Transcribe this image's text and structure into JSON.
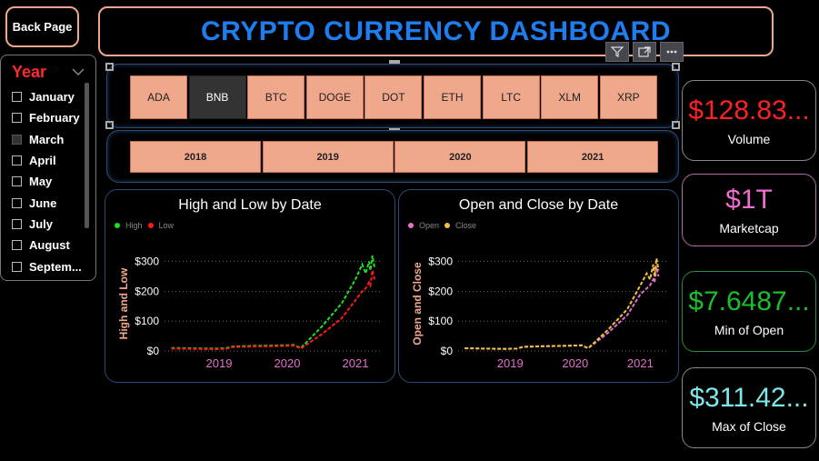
{
  "nav": {
    "back_label": "Back Page"
  },
  "header": {
    "title": "CRYPTO CURRENCY DASHBOARD"
  },
  "toolbar": {
    "icons": [
      "filter-icon",
      "focus-mode-icon",
      "more-options-icon"
    ]
  },
  "year_slicer": {
    "label": "Year",
    "months": [
      {
        "label": "January",
        "checked": false
      },
      {
        "label": "February",
        "checked": false
      },
      {
        "label": "March",
        "checked": true
      },
      {
        "label": "April",
        "checked": false
      },
      {
        "label": "May",
        "checked": false
      },
      {
        "label": "June",
        "checked": false
      },
      {
        "label": "July",
        "checked": false
      },
      {
        "label": "August",
        "checked": false
      },
      {
        "label": "Septem...",
        "checked": false
      }
    ]
  },
  "coin_slicer": {
    "coins": [
      "ADA",
      "BNB",
      "BTC",
      "DOGE",
      "DOT",
      "ETH",
      "LTC",
      "XLM",
      "XRP"
    ],
    "selected": "BNB"
  },
  "year_buttons": [
    "2018",
    "2019",
    "2020",
    "2021"
  ],
  "kpis": [
    {
      "value": "$128.83...",
      "label": "Volume",
      "color": "#ff2020"
    },
    {
      "value": "$1T",
      "label": "Marketcap",
      "color": "#ee6fd0"
    },
    {
      "value": "$7.6487...",
      "label": "Min of Open",
      "color": "#19c02c"
    },
    {
      "value": "$311.42...",
      "label": "Max of Close",
      "color": "#7fe6ea"
    }
  ],
  "chart_data": [
    {
      "type": "line",
      "title": "High and Low by Date",
      "ylabel": "High and Low",
      "x_ticks": [
        "2019",
        "2020",
        "2021"
      ],
      "y_ticks": [
        "$0",
        "$100",
        "$200",
        "$300"
      ],
      "ylim": [
        0,
        320
      ],
      "xlim": [
        2018.2,
        2021.4
      ],
      "grid": "horizontal dotted",
      "legend": "top-left",
      "series": [
        {
          "name": "High",
          "color": "#22dd22",
          "x": [
            2018.3,
            2018.6,
            2018.9,
            2019.1,
            2019.2,
            2019.5,
            2019.8,
            2020.1,
            2020.2,
            2020.5,
            2020.8,
            2021.0,
            2021.1,
            2021.15,
            2021.2,
            2021.22,
            2021.25,
            2021.28
          ],
          "y": [
            10,
            9,
            8,
            9,
            15,
            17,
            18,
            20,
            10,
            80,
            160,
            240,
            290,
            260,
            300,
            270,
            320,
            280
          ]
        },
        {
          "name": "Low",
          "color": "#ff1a1a",
          "x": [
            2018.3,
            2018.6,
            2018.9,
            2019.1,
            2019.2,
            2019.5,
            2019.8,
            2020.1,
            2020.2,
            2020.5,
            2020.8,
            2021.0,
            2021.1,
            2021.15,
            2021.2,
            2021.22,
            2021.25,
            2021.28
          ],
          "y": [
            8,
            7,
            6,
            7,
            13,
            15,
            16,
            18,
            8,
            55,
            110,
            170,
            200,
            210,
            230,
            220,
            270,
            240
          ]
        }
      ]
    },
    {
      "type": "line",
      "title": "Open and Close by Date",
      "ylabel": "Open and Close",
      "x_ticks": [
        "2019",
        "2020",
        "2021"
      ],
      "y_ticks": [
        "$0",
        "$100",
        "$200",
        "$300"
      ],
      "ylim": [
        0,
        320
      ],
      "xlim": [
        2018.2,
        2021.4
      ],
      "grid": "horizontal dotted",
      "legend": "top-left",
      "series": [
        {
          "name": "Open",
          "color": "#e46fcc",
          "x": [
            2018.3,
            2018.6,
            2018.9,
            2019.1,
            2019.2,
            2019.5,
            2019.8,
            2020.1,
            2020.2,
            2020.5,
            2020.8,
            2021.0,
            2021.1,
            2021.15,
            2021.2,
            2021.22,
            2021.25,
            2021.28
          ],
          "y": [
            9,
            8,
            7,
            8,
            14,
            16,
            17,
            19,
            9,
            60,
            120,
            190,
            210,
            220,
            240,
            230,
            280,
            250
          ]
        },
        {
          "name": "Close",
          "color": "#f0c040",
          "x": [
            2018.3,
            2018.6,
            2018.9,
            2019.1,
            2019.2,
            2019.5,
            2019.8,
            2020.1,
            2020.2,
            2020.5,
            2020.8,
            2021.0,
            2021.1,
            2021.15,
            2021.2,
            2021.22,
            2021.25,
            2021.28
          ],
          "y": [
            9,
            8,
            7,
            8,
            14,
            16,
            17,
            19,
            9,
            70,
            140,
            220,
            260,
            240,
            290,
            250,
            310,
            270
          ]
        }
      ]
    }
  ]
}
